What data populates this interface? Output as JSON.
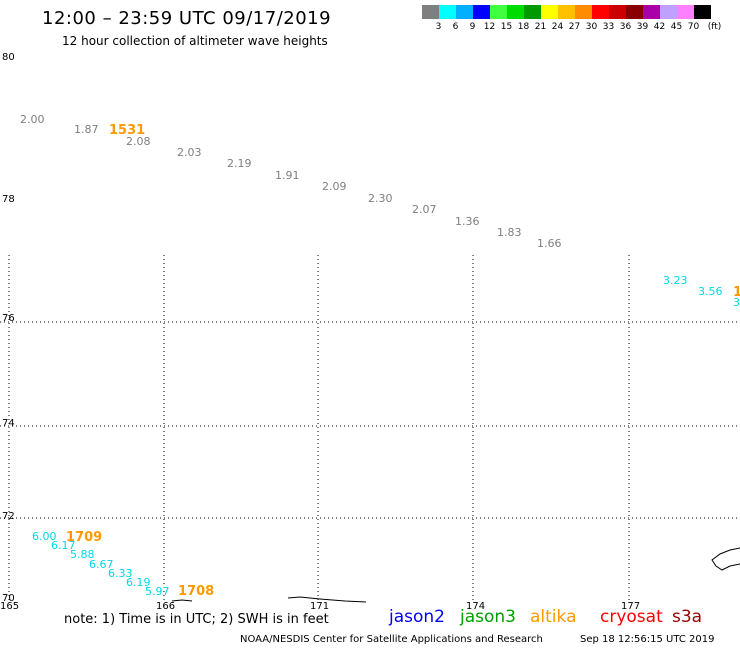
{
  "header": {
    "title": "12:00 – 23:59 UTC 09/17/2019",
    "subtitle": "12 hour collection of altimeter wave heights"
  },
  "legend": {
    "unit": "(ft)",
    "items": [
      {
        "color": "#7f7f7f",
        "label": "3"
      },
      {
        "color": "#00ffff",
        "label": "6"
      },
      {
        "color": "#00b0ff",
        "label": "9"
      },
      {
        "color": "#0000ff",
        "label": "12"
      },
      {
        "color": "#40ff40",
        "label": "15"
      },
      {
        "color": "#00dc00",
        "label": "18"
      },
      {
        "color": "#009900",
        "label": "21"
      },
      {
        "color": "#ffff00",
        "label": "24"
      },
      {
        "color": "#ffc000",
        "label": "27"
      },
      {
        "color": "#ff8c00",
        "label": "30"
      },
      {
        "color": "#ff0000",
        "label": "33"
      },
      {
        "color": "#cc0000",
        "label": "36"
      },
      {
        "color": "#880000",
        "label": "39"
      },
      {
        "color": "#aa00aa",
        "label": "42"
      },
      {
        "color": "#c0a0ff",
        "label": "45"
      },
      {
        "color": "#ff80ff",
        "label": "70"
      },
      {
        "color": "#000000",
        "label": ""
      }
    ]
  },
  "map": {
    "lat_labels": [
      "80",
      "78",
      "76",
      "74",
      "72",
      "70"
    ],
    "lon_labels": [
      "165",
      "166",
      "171",
      "174",
      "177"
    ],
    "observations": [
      {
        "text": "2.00",
        "color": "#7f7f7f",
        "id": "obs-2-00"
      },
      {
        "text": "1.87",
        "color": "#7f7f7f"
      },
      {
        "text": "2.08",
        "color": "#7f7f7f"
      },
      {
        "text": "2.03",
        "color": "#7f7f7f"
      },
      {
        "text": "2.19",
        "color": "#7f7f7f"
      },
      {
        "text": "1.91",
        "color": "#7f7f7f"
      },
      {
        "text": "2.09",
        "color": "#7f7f7f"
      },
      {
        "text": "2.30",
        "color": "#7f7f7f"
      },
      {
        "text": "2.07",
        "color": "#7f7f7f"
      },
      {
        "text": "1.36",
        "color": "#7f7f7f"
      },
      {
        "text": "1.83",
        "color": "#7f7f7f"
      },
      {
        "text": "1.66",
        "color": "#7f7f7f"
      },
      {
        "text": "3.23",
        "color": "#00d8e8"
      },
      {
        "text": "3.56",
        "color": "#00d8e8"
      },
      {
        "text": "3",
        "color": "#00d8e8"
      },
      {
        "text": "6.00",
        "color": "#00d8e8"
      },
      {
        "text": "6.17",
        "color": "#00d8e8"
      },
      {
        "text": "5.88",
        "color": "#00d8e8"
      },
      {
        "text": "6.67",
        "color": "#00d8e8"
      },
      {
        "text": "6.33",
        "color": "#00d8e8"
      },
      {
        "text": "6.19",
        "color": "#00d8e8"
      },
      {
        "text": "5.97",
        "color": "#00d8e8"
      }
    ],
    "times": [
      {
        "text": "1531",
        "color": "#ff9900"
      },
      {
        "text": "1",
        "color": "#ff9900"
      },
      {
        "text": "1709",
        "color": "#ff9900"
      },
      {
        "text": "1708",
        "color": "#ff9900"
      }
    ]
  },
  "footer": {
    "note": "note:  1) Time is in UTC;  2) SWH is in feet",
    "satellites": [
      {
        "name": "jason2",
        "color": "#0000ff"
      },
      {
        "name": "jason3",
        "color": "#00a000"
      },
      {
        "name": "altika",
        "color": "#ff9900"
      },
      {
        "name": "cryosat",
        "color": "#ff0000"
      },
      {
        "name": "s3a",
        "color": "#990000"
      }
    ],
    "credit": "NOAA/NESDIS Center for Satellite Applications and Research",
    "timestamp": "Sep 18 12:56:15 UTC 2019"
  }
}
